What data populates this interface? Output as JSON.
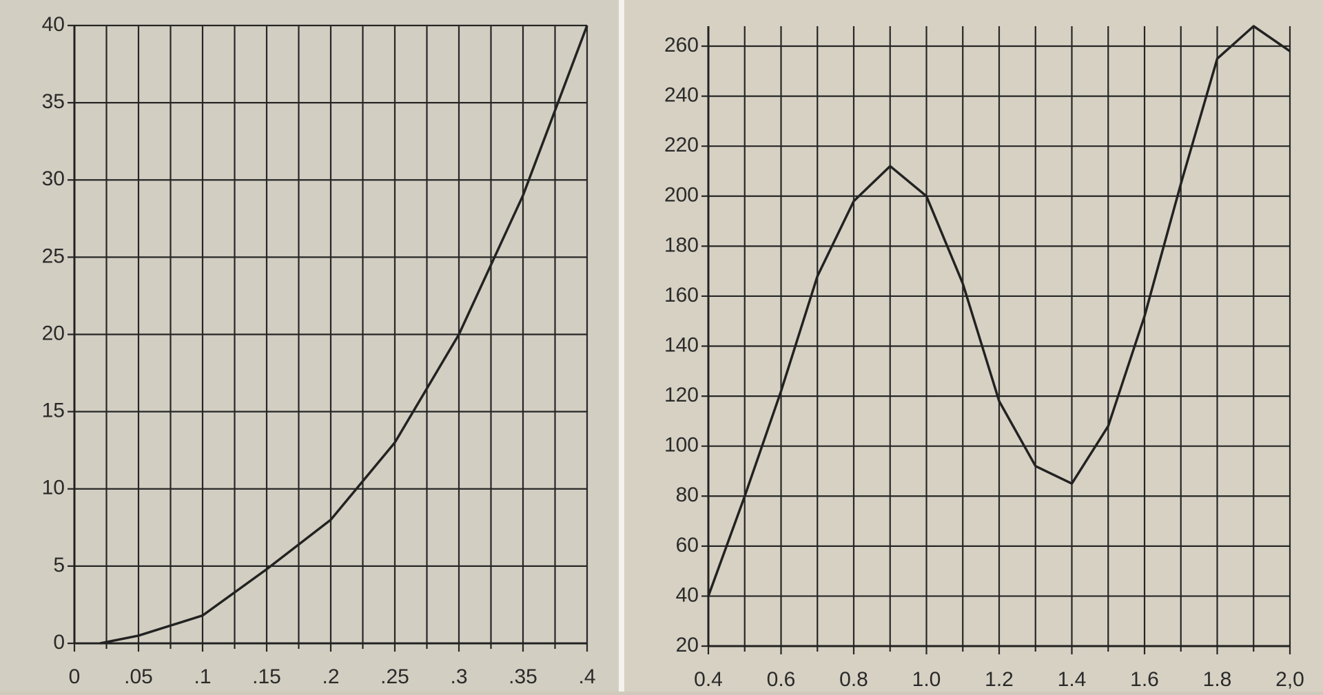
{
  "chart_data": [
    {
      "type": "line",
      "x": [
        0.02,
        0.05,
        0.1,
        0.15,
        0.2,
        0.25,
        0.3,
        0.35,
        0.4
      ],
      "series": [
        {
          "color": "#222222",
          "values": [
            0,
            0.5,
            1.8,
            4.8,
            8,
            13,
            20,
            29,
            40
          ]
        }
      ],
      "xlim": [
        0,
        0.4
      ],
      "xticks": [
        0,
        {
          "value": 0.05,
          "label": ".05"
        },
        {
          "value": 0.1,
          "label": ".1"
        },
        {
          "value": 0.15,
          "label": ".15"
        },
        {
          "value": 0.2,
          "label": ".2"
        },
        {
          "value": 0.25,
          "label": ".25"
        },
        {
          "value": 0.3,
          "label": ".3"
        },
        {
          "value": 0.35,
          "label": ".35"
        },
        {
          "value": 0.4,
          "label": ".4"
        }
      ],
      "xminor": [
        0.025,
        0.075,
        0.125,
        0.175,
        0.225,
        0.275,
        0.325,
        0.375
      ],
      "ylim": [
        0,
        40
      ],
      "yticks": [
        0,
        5,
        10,
        15,
        20,
        25,
        30,
        35,
        40
      ],
      "grid": true
    },
    {
      "type": "line",
      "x": [
        0.4,
        0.5,
        0.6,
        0.7,
        0.8,
        0.9,
        1.0,
        1.1,
        1.2,
        1.3,
        1.4,
        1.5,
        1.6,
        1.7,
        1.8,
        1.9,
        2.0
      ],
      "series": [
        {
          "color": "#222222",
          "values": [
            40,
            80,
            122,
            168,
            198,
            212,
            200,
            165,
            118,
            92,
            85,
            108,
            152,
            205,
            255,
            268,
            258
          ]
        }
      ],
      "xlim": [
        0.4,
        2.0
      ],
      "xticks": [
        0.4,
        0.6,
        0.8,
        {
          "value": 1.0,
          "label": "1.0"
        },
        1.2,
        1.4,
        1.6,
        1.8,
        {
          "value": 2.0,
          "label": "2,0"
        }
      ],
      "xminor": [
        0.5,
        0.7,
        0.9,
        1.1,
        1.3,
        1.5,
        1.7,
        1.9
      ],
      "ylim": [
        20,
        268
      ],
      "yticks": [
        20,
        40,
        60,
        80,
        100,
        120,
        140,
        160,
        180,
        200,
        220,
        240,
        260
      ],
      "grid": true
    }
  ]
}
